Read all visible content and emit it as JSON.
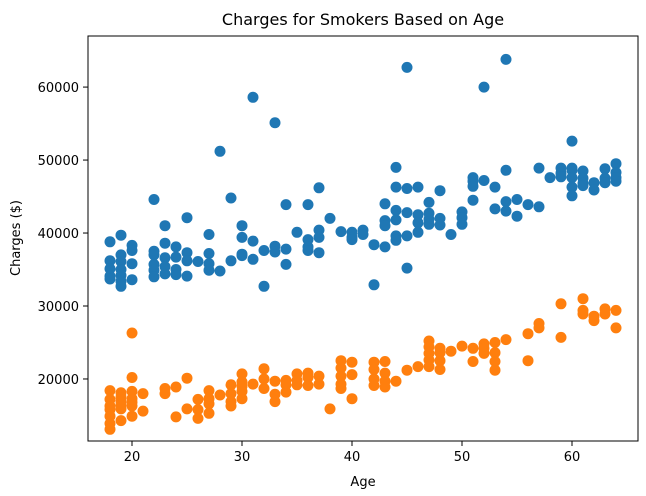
{
  "chart_data": {
    "type": "scatter",
    "title": "Charges for Smokers Based on Age",
    "xlabel": "Age",
    "ylabel": "Charges ($)",
    "xlim": [
      16,
      66
    ],
    "ylim": [
      11500,
      67000
    ],
    "xticks": [
      20,
      30,
      40,
      50,
      60
    ],
    "yticks": [
      20000,
      30000,
      40000,
      50000,
      60000
    ],
    "grid": false,
    "series": [
      {
        "color": "#1f77b4",
        "points": [
          [
            18,
            38800
          ],
          [
            18,
            36200
          ],
          [
            18,
            35100
          ],
          [
            18,
            34100
          ],
          [
            18,
            33700
          ],
          [
            19,
            39700
          ],
          [
            19,
            37000
          ],
          [
            19,
            36100
          ],
          [
            19,
            35000
          ],
          [
            19,
            34200
          ],
          [
            19,
            33400
          ],
          [
            19,
            32700
          ],
          [
            20,
            38300
          ],
          [
            20,
            37600
          ],
          [
            20,
            35800
          ],
          [
            20,
            33600
          ],
          [
            22,
            44600
          ],
          [
            22,
            37500
          ],
          [
            22,
            37000
          ],
          [
            22,
            35700
          ],
          [
            22,
            34900
          ],
          [
            22,
            34000
          ],
          [
            23,
            41000
          ],
          [
            23,
            38600
          ],
          [
            23,
            36600
          ],
          [
            23,
            35400
          ],
          [
            23,
            34400
          ],
          [
            24,
            38100
          ],
          [
            24,
            36700
          ],
          [
            24,
            35000
          ],
          [
            24,
            34300
          ],
          [
            25,
            42100
          ],
          [
            25,
            37300
          ],
          [
            25,
            36200
          ],
          [
            25,
            34100
          ],
          [
            26,
            36100
          ],
          [
            27,
            39800
          ],
          [
            27,
            37200
          ],
          [
            27,
            35800
          ],
          [
            27,
            34900
          ],
          [
            28,
            51200
          ],
          [
            28,
            34800
          ],
          [
            29,
            44800
          ],
          [
            29,
            36200
          ],
          [
            30,
            41000
          ],
          [
            30,
            39400
          ],
          [
            30,
            36900
          ],
          [
            30,
            37100
          ],
          [
            31,
            58600
          ],
          [
            31,
            38900
          ],
          [
            31,
            36400
          ],
          [
            32,
            37600
          ],
          [
            32,
            32700
          ],
          [
            33,
            55100
          ],
          [
            33,
            38200
          ],
          [
            33,
            37400
          ],
          [
            34,
            43900
          ],
          [
            34,
            37800
          ],
          [
            34,
            35700
          ],
          [
            35,
            40100
          ],
          [
            36,
            43900
          ],
          [
            36,
            39100
          ],
          [
            36,
            38100
          ],
          [
            36,
            37600
          ],
          [
            37,
            46200
          ],
          [
            37,
            40400
          ],
          [
            37,
            39400
          ],
          [
            37,
            37300
          ],
          [
            38,
            42000
          ],
          [
            39,
            40200
          ],
          [
            40,
            40100
          ],
          [
            40,
            39400
          ],
          [
            40,
            39100
          ],
          [
            41,
            40400
          ],
          [
            41,
            39800
          ],
          [
            42,
            38400
          ],
          [
            42,
            32900
          ],
          [
            43,
            44000
          ],
          [
            43,
            41700
          ],
          [
            43,
            41000
          ],
          [
            43,
            38100
          ],
          [
            44,
            49000
          ],
          [
            44,
            46300
          ],
          [
            44,
            43100
          ],
          [
            44,
            41800
          ],
          [
            44,
            39600
          ],
          [
            44,
            39000
          ],
          [
            45,
            62700
          ],
          [
            45,
            46100
          ],
          [
            45,
            42800
          ],
          [
            45,
            39600
          ],
          [
            45,
            35200
          ],
          [
            46,
            46300
          ],
          [
            46,
            42500
          ],
          [
            46,
            41400
          ],
          [
            46,
            40100
          ],
          [
            47,
            44200
          ],
          [
            47,
            42700
          ],
          [
            47,
            41900
          ],
          [
            47,
            41200
          ],
          [
            48,
            45800
          ],
          [
            48,
            42000
          ],
          [
            48,
            41100
          ],
          [
            49,
            39800
          ],
          [
            50,
            42900
          ],
          [
            50,
            42100
          ],
          [
            50,
            41200
          ],
          [
            51,
            47600
          ],
          [
            51,
            47100
          ],
          [
            51,
            46400
          ],
          [
            51,
            44500
          ],
          [
            52,
            60000
          ],
          [
            52,
            47200
          ],
          [
            53,
            46300
          ],
          [
            53,
            43300
          ],
          [
            54,
            63800
          ],
          [
            54,
            48600
          ],
          [
            54,
            44300
          ],
          [
            54,
            43000
          ],
          [
            55,
            44600
          ],
          [
            55,
            42300
          ],
          [
            56,
            43900
          ],
          [
            57,
            48900
          ],
          [
            57,
            43600
          ],
          [
            58,
            47600
          ],
          [
            59,
            48900
          ],
          [
            59,
            48200
          ],
          [
            59,
            47700
          ],
          [
            60,
            52600
          ],
          [
            60,
            48900
          ],
          [
            60,
            48600
          ],
          [
            60,
            47600
          ],
          [
            60,
            46300
          ],
          [
            60,
            45100
          ],
          [
            61,
            48500
          ],
          [
            61,
            47500
          ],
          [
            61,
            46800
          ],
          [
            61,
            46500
          ],
          [
            62,
            46900
          ],
          [
            62,
            45900
          ],
          [
            63,
            48800
          ],
          [
            63,
            47500
          ],
          [
            63,
            46900
          ],
          [
            64,
            49500
          ],
          [
            64,
            48300
          ],
          [
            64,
            47600
          ],
          [
            64,
            47100
          ]
        ]
      },
      {
        "color": "#ff7f0e",
        "points": [
          [
            18,
            18400
          ],
          [
            18,
            17200
          ],
          [
            18,
            16300
          ],
          [
            18,
            15800
          ],
          [
            18,
            14900
          ],
          [
            18,
            13900
          ],
          [
            18,
            13100
          ],
          [
            19,
            18100
          ],
          [
            19,
            17500
          ],
          [
            19,
            16900
          ],
          [
            19,
            16400
          ],
          [
            19,
            15900
          ],
          [
            19,
            14300
          ],
          [
            20,
            26300
          ],
          [
            20,
            20200
          ],
          [
            20,
            18300
          ],
          [
            20,
            17300
          ],
          [
            20,
            16800
          ],
          [
            20,
            16300
          ],
          [
            20,
            14900
          ],
          [
            21,
            18000
          ],
          [
            21,
            15600
          ],
          [
            23,
            18700
          ],
          [
            23,
            18000
          ],
          [
            24,
            18900
          ],
          [
            24,
            14800
          ],
          [
            25,
            20100
          ],
          [
            25,
            15900
          ],
          [
            26,
            17200
          ],
          [
            26,
            15800
          ],
          [
            26,
            14600
          ],
          [
            27,
            18400
          ],
          [
            27,
            17300
          ],
          [
            27,
            16600
          ],
          [
            27,
            15300
          ],
          [
            28,
            17800
          ],
          [
            29,
            19200
          ],
          [
            29,
            18000
          ],
          [
            29,
            16900
          ],
          [
            29,
            16300
          ],
          [
            30,
            20700
          ],
          [
            30,
            19600
          ],
          [
            30,
            19000
          ],
          [
            30,
            18300
          ],
          [
            30,
            17300
          ],
          [
            31,
            19300
          ],
          [
            32,
            21400
          ],
          [
            32,
            20000
          ],
          [
            32,
            18700
          ],
          [
            33,
            19700
          ],
          [
            33,
            17900
          ],
          [
            33,
            16900
          ],
          [
            34,
            19800
          ],
          [
            34,
            19200
          ],
          [
            34,
            18200
          ],
          [
            35,
            20700
          ],
          [
            35,
            19800
          ],
          [
            35,
            19200
          ],
          [
            36,
            20800
          ],
          [
            36,
            20200
          ],
          [
            36,
            19100
          ],
          [
            37,
            20400
          ],
          [
            37,
            19300
          ],
          [
            38,
            15900
          ],
          [
            39,
            22500
          ],
          [
            39,
            21500
          ],
          [
            39,
            20400
          ],
          [
            39,
            19300
          ],
          [
            39,
            18700
          ],
          [
            40,
            22300
          ],
          [
            40,
            20600
          ],
          [
            40,
            17300
          ],
          [
            42,
            22300
          ],
          [
            42,
            21300
          ],
          [
            42,
            20000
          ],
          [
            42,
            19100
          ],
          [
            43,
            22400
          ],
          [
            43,
            20800
          ],
          [
            43,
            19700
          ],
          [
            43,
            18900
          ],
          [
            44,
            19700
          ],
          [
            45,
            21200
          ],
          [
            46,
            21700
          ],
          [
            47,
            25200
          ],
          [
            47,
            24400
          ],
          [
            47,
            23500
          ],
          [
            47,
            22600
          ],
          [
            47,
            21700
          ],
          [
            48,
            24200
          ],
          [
            48,
            23600
          ],
          [
            48,
            22500
          ],
          [
            48,
            21300
          ],
          [
            49,
            23800
          ],
          [
            50,
            24500
          ],
          [
            51,
            24200
          ],
          [
            51,
            22400
          ],
          [
            52,
            24800
          ],
          [
            52,
            24200
          ],
          [
            52,
            23500
          ],
          [
            53,
            25000
          ],
          [
            53,
            23600
          ],
          [
            53,
            22400
          ],
          [
            53,
            21200
          ],
          [
            54,
            25400
          ],
          [
            56,
            26200
          ],
          [
            56,
            22500
          ],
          [
            57,
            27600
          ],
          [
            57,
            27000
          ],
          [
            59,
            30300
          ],
          [
            59,
            25700
          ],
          [
            61,
            31000
          ],
          [
            61,
            29400
          ],
          [
            61,
            28900
          ],
          [
            62,
            28600
          ],
          [
            62,
            28000
          ],
          [
            63,
            29600
          ],
          [
            63,
            28900
          ],
          [
            64,
            29400
          ],
          [
            64,
            27000
          ]
        ]
      }
    ]
  }
}
